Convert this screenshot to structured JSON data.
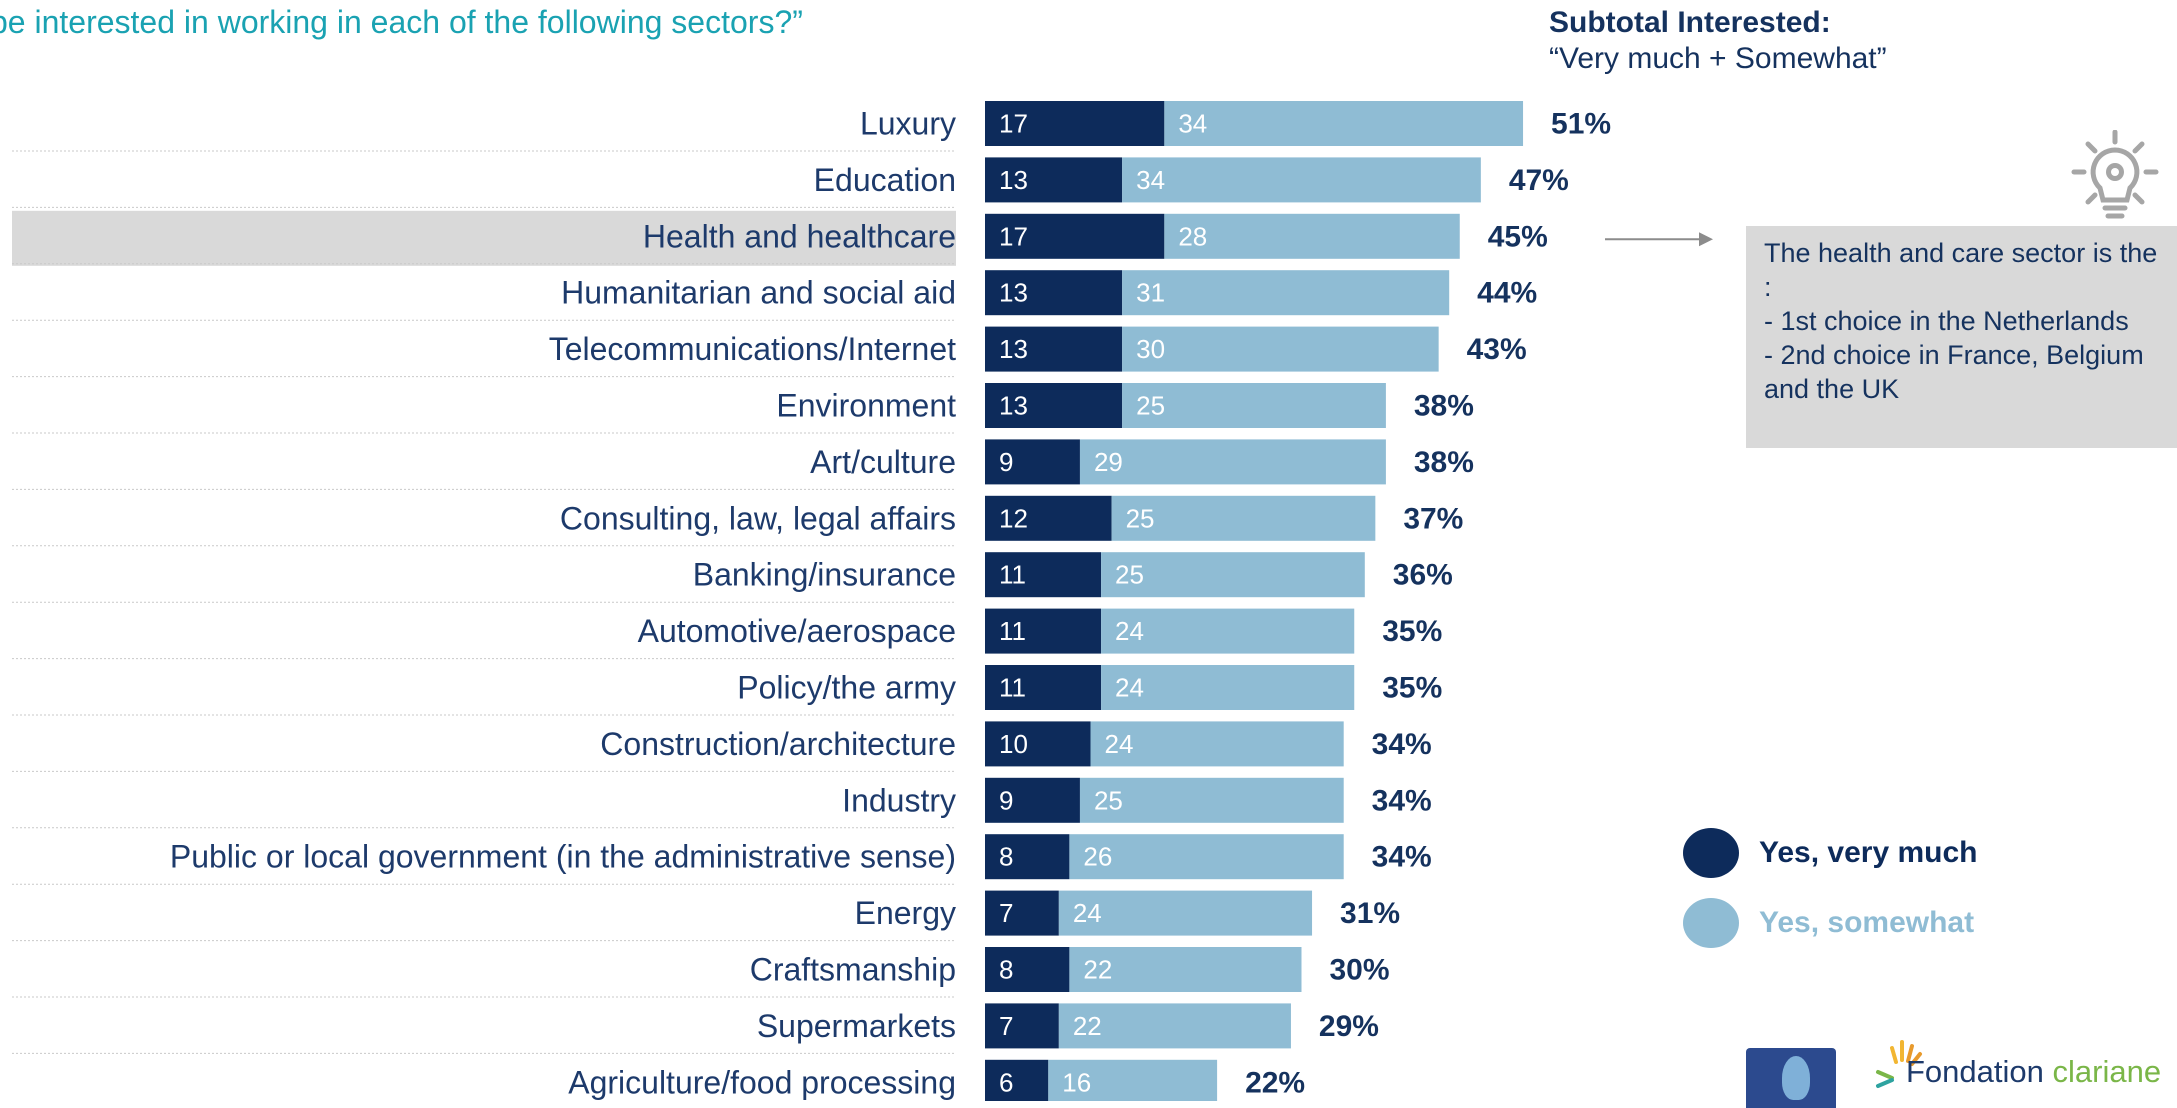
{
  "question": "be interested in working in each of the following sectors?”",
  "subtotal": {
    "heading": "Subtotal Interested:",
    "subheading": "“Very much + Somewhat”"
  },
  "callout": {
    "text": "The health and care sector is the :\n- 1st choice in the Netherlands\n- 2nd choice in France, Belgium and the UK"
  },
  "legend": {
    "very_much": "Yes, very much",
    "somewhat": "Yes, somewhat"
  },
  "logo": {
    "name_part1": "Fondation",
    "name_part2": "clariane"
  },
  "colors": {
    "very_much": "#0d2b5b",
    "somewhat": "#8fbcd4",
    "highlight_row": "#d9d9d9",
    "question_text": "#1aa2b2",
    "label_text": "#1d3a6b"
  },
  "chart_data": {
    "type": "bar",
    "orientation": "horizontal",
    "stacked": true,
    "categories": [
      "Luxury",
      "Education",
      "Health and healthcare",
      "Humanitarian and social aid",
      "Telecommunications/Internet",
      "Environment",
      "Art/culture",
      "Consulting, law, legal affairs",
      "Banking/insurance",
      "Automotive/aerospace",
      "Policy/the army",
      "Construction/architecture",
      "Industry",
      "Public or local government (in the administrative sense)",
      "Energy",
      "Craftsmanship",
      "Supermarkets",
      "Agriculture/food processing"
    ],
    "series": [
      {
        "name": "Yes, very much",
        "values": [
          17,
          13,
          17,
          13,
          13,
          13,
          9,
          12,
          11,
          11,
          11,
          10,
          9,
          8,
          7,
          8,
          7,
          6
        ]
      },
      {
        "name": "Yes, somewhat",
        "values": [
          34,
          34,
          28,
          31,
          30,
          25,
          29,
          25,
          25,
          24,
          24,
          24,
          25,
          26,
          24,
          22,
          22,
          16
        ]
      }
    ],
    "totals": [
      "51%",
      "47%",
      "45%",
      "44%",
      "43%",
      "38%",
      "38%",
      "37%",
      "36%",
      "35%",
      "35%",
      "34%",
      "34%",
      "34%",
      "31%",
      "30%",
      "29%",
      "22%"
    ],
    "highlighted_category": "Health and healthcare",
    "legend_position": "bottom-right"
  }
}
